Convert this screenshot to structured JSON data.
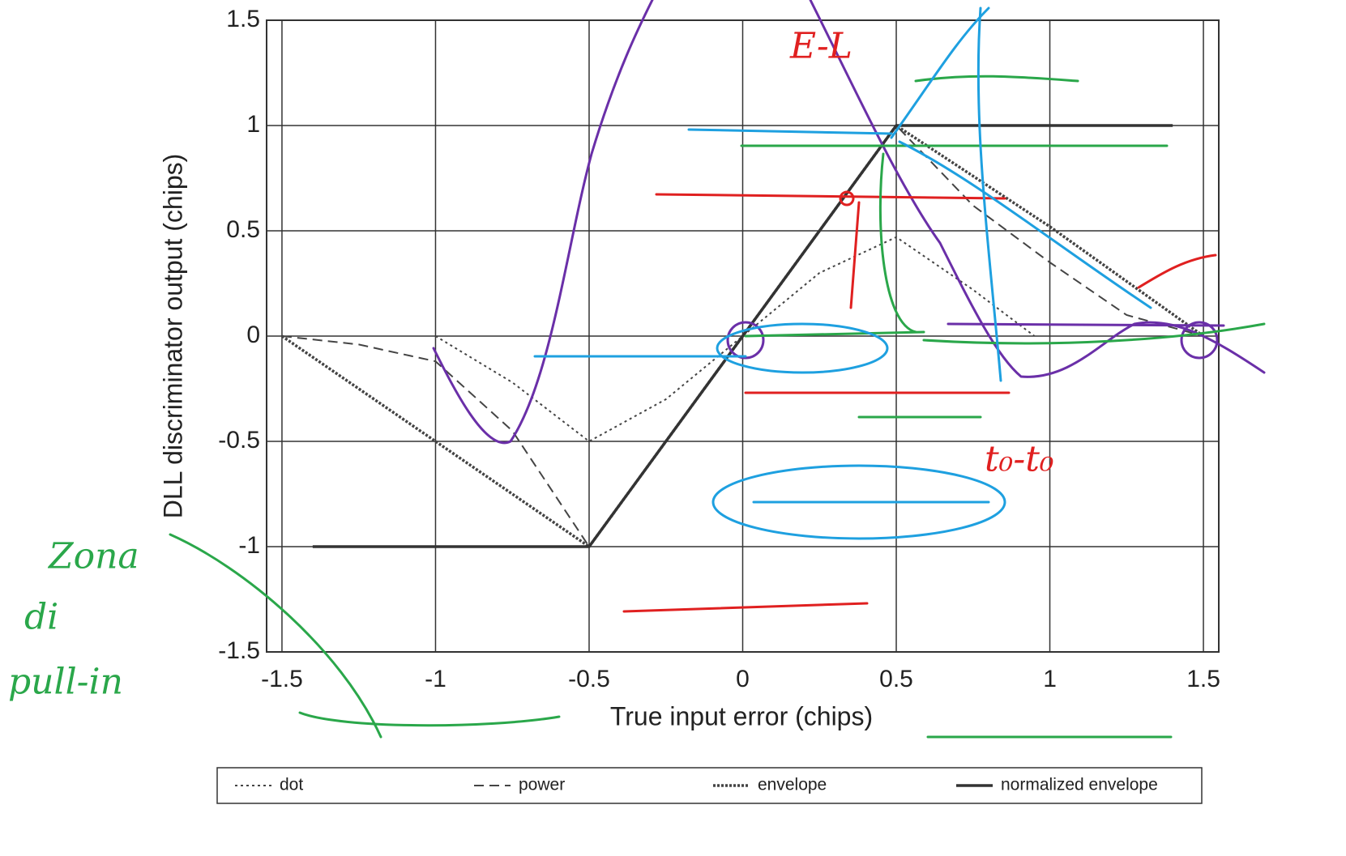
{
  "chart_data": {
    "type": "line",
    "xlabel": "True input error (chips)",
    "ylabel": "DLL discriminator output (chips)",
    "xlim": [
      -1.55,
      1.55
    ],
    "ylim": [
      -1.5,
      1.5
    ],
    "xticks": [
      -1.5,
      -1,
      -0.5,
      0,
      0.5,
      1,
      1.5
    ],
    "yticks": [
      1.5,
      1,
      0.5,
      0,
      -0.5,
      -1,
      -1.5
    ],
    "grid": true,
    "legend": "bottom",
    "series": [
      {
        "name": "dot",
        "color": "#444",
        "dash": "dot",
        "x": [
          -1,
          -0.75,
          -0.5,
          -0.25,
          0,
          0.25,
          0.5,
          0.75,
          0.95
        ],
        "values": [
          0,
          -0.22,
          -0.5,
          -0.3,
          0,
          0.3,
          0.47,
          0.22,
          0
        ]
      },
      {
        "name": "power",
        "color": "#444",
        "dash": "dash",
        "x": [
          -1.5,
          -1.25,
          -1,
          -0.75,
          -0.5,
          0.5,
          0.75,
          1,
          1.25,
          1.5
        ],
        "values": [
          0,
          -0.04,
          -0.12,
          -0.45,
          -1,
          1,
          0.62,
          0.35,
          0.1,
          0
        ]
      },
      {
        "name": "envelope",
        "color": "#444",
        "dash": "densedot",
        "x": [
          -1.5,
          -1,
          -0.5,
          0.5,
          1,
          1.5
        ],
        "values": [
          0,
          -0.5,
          -1,
          1,
          0.52,
          0
        ]
      },
      {
        "name": "normalized envelope",
        "color": "#333",
        "dash": "solid",
        "x": [
          -1.4,
          -0.5,
          0.5,
          1.4
        ],
        "values": [
          -1,
          -1,
          1,
          1
        ]
      }
    ],
    "annotations": [
      "E-L",
      "t₀-t₀",
      "Zona",
      "di",
      "pull-in"
    ]
  }
}
